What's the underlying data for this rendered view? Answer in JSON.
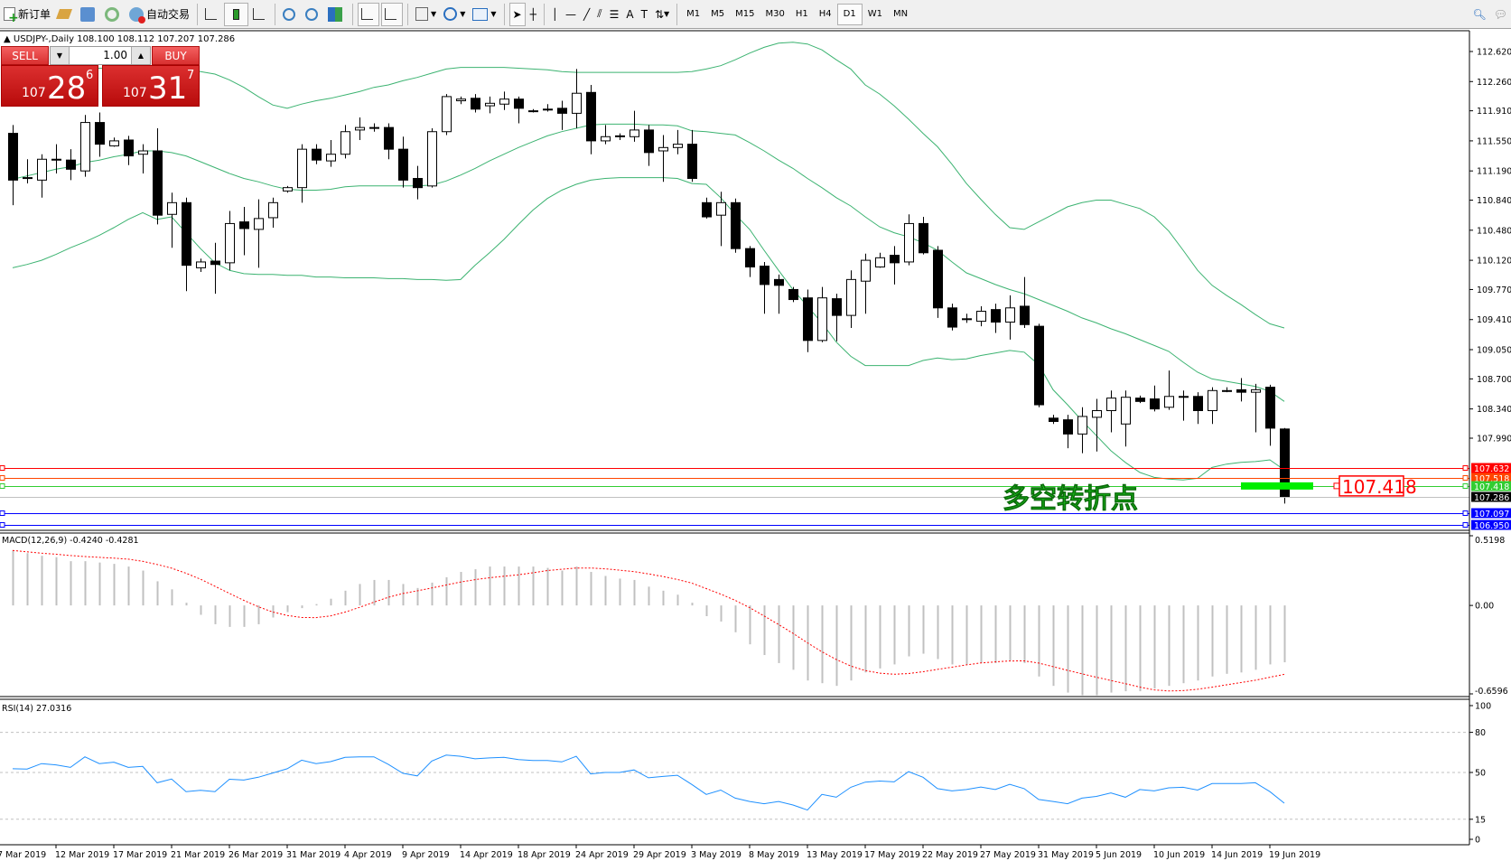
{
  "toolbar": {
    "new_order": "新订单",
    "auto_trading": "自动交易",
    "periods": [
      "M1",
      "M5",
      "M15",
      "M30",
      "H1",
      "H4",
      "D1",
      "W1",
      "MN"
    ],
    "active_period": "D1"
  },
  "chart_header": {
    "symbol": "USDJPY-,Daily",
    "ohlc": "108.100 108.112 107.207 107.286"
  },
  "trade_panel": {
    "sell_label": "SELL",
    "buy_label": "BUY",
    "lot": "1.00",
    "sell_price": {
      "small": "107",
      "big": "28",
      "sup": "6"
    },
    "buy_price": {
      "small": "107",
      "big": "31",
      "sup": "7"
    }
  },
  "annotation": {
    "text": "多空转折点",
    "price_label": "107.418"
  },
  "colors": {
    "bands": "#3cb371",
    "rsi": "#1e90ff",
    "macd_hist": "#c0c0c0",
    "macd_signal": "#ff0000",
    "bull": "#ffffff",
    "bear": "#000000"
  },
  "chart_data": [
    {
      "type": "candlestick",
      "title": "USDJPY-,Daily",
      "ohlc_readout": "108.100 108.112 107.207 107.286",
      "x_labels": [
        "7 Mar 2019",
        "12 Mar 2019",
        "17 Mar 2019",
        "21 Mar 2019",
        "26 Mar 2019",
        "31 Mar 2019",
        "4 Apr 2019",
        "9 Apr 2019",
        "14 Apr 2019",
        "18 Apr 2019",
        "24 Apr 2019",
        "29 Apr 2019",
        "3 May 2019",
        "8 May 2019",
        "13 May 2019",
        "17 May 2019",
        "22 May 2019",
        "27 May 2019",
        "31 May 2019",
        "5 Jun 2019",
        "10 Jun 2019",
        "14 Jun 2019",
        "19 Jun 2019"
      ],
      "y_ticks": [
        "112.620",
        "112.260",
        "111.910",
        "111.550",
        "111.190",
        "110.840",
        "110.480",
        "110.120",
        "109.770",
        "109.410",
        "109.050",
        "108.700",
        "108.340",
        "107.990"
      ],
      "candles_ohlc": [
        [
          111.64,
          111.74,
          110.78,
          111.08
        ],
        [
          111.1,
          111.33,
          111.04,
          111.11
        ],
        [
          111.08,
          111.39,
          110.87,
          111.33
        ],
        [
          111.32,
          111.51,
          111.16,
          111.33
        ],
        [
          111.32,
          111.45,
          111.08,
          111.21
        ],
        [
          111.19,
          111.86,
          111.12,
          111.77
        ],
        [
          111.77,
          111.89,
          111.36,
          111.51
        ],
        [
          111.49,
          111.59,
          111.48,
          111.55
        ],
        [
          111.56,
          111.61,
          111.26,
          111.37
        ],
        [
          111.39,
          111.51,
          111.16,
          111.43
        ],
        [
          111.43,
          111.7,
          110.55,
          110.66
        ],
        [
          110.67,
          110.93,
          110.27,
          110.81
        ],
        [
          110.81,
          110.87,
          109.75,
          110.06
        ],
        [
          110.03,
          110.14,
          109.98,
          110.1
        ],
        [
          110.11,
          110.33,
          109.72,
          110.07
        ],
        [
          110.09,
          110.71,
          110.0,
          110.56
        ],
        [
          110.58,
          110.76,
          110.18,
          110.5
        ],
        [
          110.49,
          110.85,
          110.03,
          110.62
        ],
        [
          110.63,
          110.87,
          110.51,
          110.81
        ],
        [
          110.95,
          111.01,
          110.93,
          110.99
        ],
        [
          110.99,
          111.51,
          110.81,
          111.45
        ],
        [
          111.45,
          111.51,
          111.27,
          111.32
        ],
        [
          111.31,
          111.56,
          111.24,
          111.39
        ],
        [
          111.39,
          111.74,
          111.34,
          111.66
        ],
        [
          111.68,
          111.83,
          111.56,
          111.71
        ],
        [
          111.7,
          111.76,
          111.66,
          111.71
        ],
        [
          111.71,
          111.76,
          111.33,
          111.45
        ],
        [
          111.45,
          111.6,
          110.99,
          111.08
        ],
        [
          111.1,
          111.25,
          110.85,
          110.99
        ],
        [
          111.01,
          111.7,
          110.99,
          111.66
        ],
        [
          111.66,
          112.11,
          111.62,
          112.08
        ],
        [
          112.03,
          112.08,
          111.99,
          112.05
        ],
        [
          112.06,
          112.11,
          111.89,
          111.93
        ],
        [
          111.97,
          112.08,
          111.88,
          112.0
        ],
        [
          111.99,
          112.14,
          111.92,
          112.05
        ],
        [
          112.05,
          112.08,
          111.76,
          111.94
        ],
        [
          111.91,
          111.93,
          111.89,
          111.91
        ],
        [
          111.93,
          111.99,
          111.9,
          111.93
        ],
        [
          111.94,
          112.03,
          111.68,
          111.88
        ],
        [
          111.88,
          112.41,
          111.7,
          112.12
        ],
        [
          112.13,
          112.22,
          111.39,
          111.55
        ],
        [
          111.55,
          111.74,
          111.51,
          111.6
        ],
        [
          111.6,
          111.64,
          111.56,
          111.61
        ],
        [
          111.6,
          111.91,
          111.54,
          111.68
        ],
        [
          111.68,
          111.74,
          111.25,
          111.41
        ],
        [
          111.43,
          111.62,
          111.06,
          111.47
        ],
        [
          111.47,
          111.68,
          111.39,
          111.51
        ],
        [
          111.51,
          111.68,
          111.06,
          111.1
        ],
        [
          110.81,
          110.87,
          110.62,
          110.64
        ],
        [
          110.66,
          110.94,
          110.29,
          110.81
        ],
        [
          110.81,
          110.86,
          110.21,
          110.26
        ],
        [
          110.26,
          110.29,
          109.92,
          110.04
        ],
        [
          110.05,
          110.1,
          109.48,
          109.83
        ],
        [
          109.89,
          109.95,
          109.48,
          109.82
        ],
        [
          109.77,
          109.8,
          109.62,
          109.65
        ],
        [
          109.67,
          109.77,
          109.02,
          109.16
        ],
        [
          109.16,
          109.8,
          109.14,
          109.67
        ],
        [
          109.66,
          109.72,
          109.15,
          109.46
        ],
        [
          109.46,
          110.0,
          109.31,
          109.89
        ],
        [
          109.87,
          110.2,
          109.48,
          110.12
        ],
        [
          110.04,
          110.21,
          110.03,
          110.15
        ],
        [
          110.18,
          110.29,
          109.83,
          110.09
        ],
        [
          110.1,
          110.67,
          110.06,
          110.56
        ],
        [
          110.56,
          110.64,
          110.19,
          110.21
        ],
        [
          110.24,
          110.29,
          109.43,
          109.55
        ],
        [
          109.55,
          109.6,
          109.28,
          109.32
        ],
        [
          109.42,
          109.48,
          109.37,
          109.41
        ],
        [
          109.39,
          109.57,
          109.33,
          109.51
        ],
        [
          109.53,
          109.6,
          109.25,
          109.38
        ],
        [
          109.38,
          109.7,
          109.17,
          109.55
        ],
        [
          109.57,
          109.92,
          109.31,
          109.35
        ],
        [
          109.33,
          109.36,
          108.36,
          108.39
        ],
        [
          108.23,
          108.27,
          108.16,
          108.19
        ],
        [
          108.21,
          108.27,
          107.87,
          108.04
        ],
        [
          108.04,
          108.36,
          107.81,
          108.25
        ],
        [
          108.24,
          108.46,
          107.83,
          108.32
        ],
        [
          108.32,
          108.56,
          108.06,
          108.47
        ],
        [
          108.16,
          108.56,
          107.89,
          108.48
        ],
        [
          108.47,
          108.5,
          108.41,
          108.43
        ],
        [
          108.46,
          108.62,
          108.31,
          108.34
        ],
        [
          108.36,
          108.8,
          108.33,
          108.49
        ],
        [
          108.49,
          108.56,
          108.2,
          108.48
        ],
        [
          108.49,
          108.54,
          108.16,
          108.32
        ],
        [
          108.32,
          108.6,
          108.16,
          108.56
        ],
        [
          108.56,
          108.6,
          108.54,
          108.55
        ],
        [
          108.57,
          108.71,
          108.43,
          108.54
        ],
        [
          108.54,
          108.64,
          108.06,
          108.57
        ],
        [
          108.6,
          108.63,
          107.9,
          108.11
        ],
        [
          108.1,
          108.112,
          107.207,
          107.286
        ]
      ],
      "bollinger_upper": [
        112.43,
        112.43,
        112.43,
        112.43,
        112.43,
        112.42,
        112.42,
        112.41,
        112.41,
        112.41,
        112.41,
        112.4,
        112.4,
        112.38,
        112.35,
        112.28,
        112.19,
        112.08,
        111.98,
        111.94,
        111.99,
        112.03,
        112.06,
        112.1,
        112.14,
        112.19,
        112.22,
        112.27,
        112.31,
        112.36,
        112.41,
        112.43,
        112.43,
        112.43,
        112.43,
        112.42,
        112.41,
        112.4,
        112.38,
        112.37,
        112.37,
        112.37,
        112.37,
        112.37,
        112.37,
        112.37,
        112.37,
        112.38,
        112.41,
        112.45,
        112.52,
        112.6,
        112.67,
        112.72,
        112.73,
        112.71,
        112.64,
        112.52,
        112.41,
        112.22,
        112.11,
        111.97,
        111.81,
        111.64,
        111.48,
        111.27,
        111.04,
        110.85,
        110.67,
        110.51,
        110.49,
        110.58,
        110.67,
        110.76,
        110.81,
        110.84,
        110.84,
        110.79,
        110.74,
        110.64,
        110.47,
        110.24,
        110.0,
        109.82,
        109.7,
        109.59,
        109.47,
        109.36,
        109.31
      ],
      "bollinger_middle": [
        111.09,
        111.13,
        111.17,
        111.21,
        111.24,
        111.29,
        111.32,
        111.36,
        111.39,
        111.43,
        111.43,
        111.41,
        111.37,
        111.3,
        111.23,
        111.16,
        111.1,
        111.06,
        111.01,
        110.97,
        110.96,
        110.96,
        110.97,
        111.0,
        111.01,
        111.01,
        111.01,
        111.01,
        111.01,
        111.02,
        111.07,
        111.14,
        111.22,
        111.31,
        111.39,
        111.47,
        111.54,
        111.61,
        111.66,
        111.7,
        111.74,
        111.75,
        111.75,
        111.75,
        111.74,
        111.74,
        111.73,
        111.67,
        111.66,
        111.64,
        111.62,
        111.53,
        111.43,
        111.32,
        111.22,
        111.1,
        110.99,
        110.87,
        110.77,
        110.64,
        110.52,
        110.45,
        110.4,
        110.33,
        110.24,
        110.1,
        109.97,
        109.9,
        109.83,
        109.77,
        109.72,
        109.65,
        109.58,
        109.51,
        109.43,
        109.37,
        109.3,
        109.24,
        109.17,
        109.1,
        109.03,
        108.9,
        108.78,
        108.7,
        108.67,
        108.64,
        108.61,
        108.55,
        108.43
      ],
      "bollinger_lower": [
        110.03,
        110.07,
        110.12,
        110.19,
        110.27,
        110.34,
        110.42,
        110.51,
        110.61,
        110.69,
        110.61,
        110.64,
        110.45,
        110.26,
        110.09,
        110.0,
        109.96,
        109.95,
        109.95,
        109.94,
        109.94,
        109.92,
        109.92,
        109.91,
        109.91,
        109.91,
        109.9,
        109.9,
        109.89,
        109.89,
        109.88,
        109.89,
        110.06,
        110.21,
        110.37,
        110.55,
        110.72,
        110.86,
        110.96,
        111.03,
        111.08,
        111.1,
        111.11,
        111.11,
        111.11,
        111.11,
        111.1,
        111.04,
        111.03,
        110.87,
        110.67,
        110.49,
        110.24,
        110.0,
        109.77,
        109.57,
        109.37,
        109.14,
        108.97,
        108.86,
        108.86,
        108.86,
        108.86,
        108.92,
        108.95,
        108.93,
        108.94,
        108.98,
        109.01,
        109.04,
        109.02,
        108.87,
        108.57,
        108.39,
        108.2,
        108.02,
        107.84,
        107.7,
        107.58,
        107.52,
        107.5,
        107.49,
        107.51,
        107.64,
        107.68,
        107.7,
        107.71,
        107.73,
        107.61
      ],
      "levels": [
        {
          "price": "107.632",
          "color": "#ff0000"
        },
        {
          "price": "107.518",
          "color": "#ff4500"
        },
        {
          "price": "107.418",
          "color": "#32cd32"
        },
        {
          "price": "107.286",
          "color": "#000000",
          "line": "#c0c0c0"
        },
        {
          "price": "107.097",
          "color": "#0000ff"
        },
        {
          "price": "106.950",
          "color": "#0000ff"
        }
      ]
    },
    {
      "type": "bar",
      "title": "MACD(12,26,9) -0.4240 -0.4281",
      "y_ticks": [
        "0.5198",
        "0.00",
        "-0.6596"
      ],
      "ylim": [
        -0.6596,
        0.5198
      ],
      "macd_hist": [
        0.41,
        0.39,
        0.37,
        0.36,
        0.33,
        0.33,
        0.32,
        0.31,
        0.29,
        0.26,
        0.18,
        0.12,
        0.02,
        -0.07,
        -0.14,
        -0.16,
        -0.16,
        -0.14,
        -0.09,
        -0.05,
        -0.02,
        0.01,
        0.05,
        0.11,
        0.16,
        0.19,
        0.19,
        0.16,
        0.13,
        0.17,
        0.21,
        0.25,
        0.27,
        0.29,
        0.29,
        0.29,
        0.29,
        0.28,
        0.26,
        0.29,
        0.25,
        0.22,
        0.2,
        0.19,
        0.14,
        0.11,
        0.08,
        0.02,
        -0.08,
        -0.12,
        -0.2,
        -0.29,
        -0.37,
        -0.43,
        -0.48,
        -0.56,
        -0.58,
        -0.6,
        -0.56,
        -0.5,
        -0.47,
        -0.44,
        -0.38,
        -0.36,
        -0.4,
        -0.44,
        -0.44,
        -0.43,
        -0.43,
        -0.41,
        -0.43,
        -0.53,
        -0.6,
        -0.65,
        -0.67,
        -0.67,
        -0.65,
        -0.64,
        -0.64,
        -0.62,
        -0.6,
        -0.58,
        -0.56,
        -0.53,
        -0.51,
        -0.5,
        -0.48,
        -0.44,
        -0.424
      ]
    },
    {
      "type": "line",
      "title": "RSI(14) 27.0316",
      "y_ticks": [
        "100",
        "80",
        "50",
        "15",
        "0"
      ],
      "levels": [
        80,
        50,
        15
      ],
      "ylim": [
        0,
        100
      ],
      "values": [
        52.8,
        52.6,
        56.6,
        55.7,
        53.8,
        61.7,
        56.6,
        57.7,
        53.8,
        54.5,
        42.3,
        45.1,
        35.7,
        36.6,
        35.7,
        44.9,
        44.3,
        46.4,
        49.6,
        52.8,
        59.2,
        56.6,
        58.1,
        61.3,
        61.7,
        61.7,
        56.0,
        49.4,
        47.4,
        58.5,
        63.0,
        62.1,
        60.2,
        60.9,
        61.3,
        59.6,
        58.9,
        58.9,
        57.9,
        62.1,
        48.9,
        50.0,
        50.0,
        51.9,
        46.0,
        47.0,
        47.9,
        41.0,
        33.6,
        36.8,
        30.8,
        28.3,
        26.6,
        28.3,
        25.7,
        21.9,
        33.6,
        31.5,
        38.9,
        42.8,
        43.6,
        43.0,
        50.6,
        46.4,
        37.9,
        36.2,
        37.2,
        39.1,
        37.2,
        41.1,
        37.9,
        29.8,
        28.3,
        26.6,
        30.8,
        32.1,
        34.7,
        31.5,
        37.2,
        36.2,
        38.5,
        38.9,
        36.8,
        41.7,
        41.7,
        41.7,
        42.3,
        35.7,
        27.0
      ]
    }
  ]
}
